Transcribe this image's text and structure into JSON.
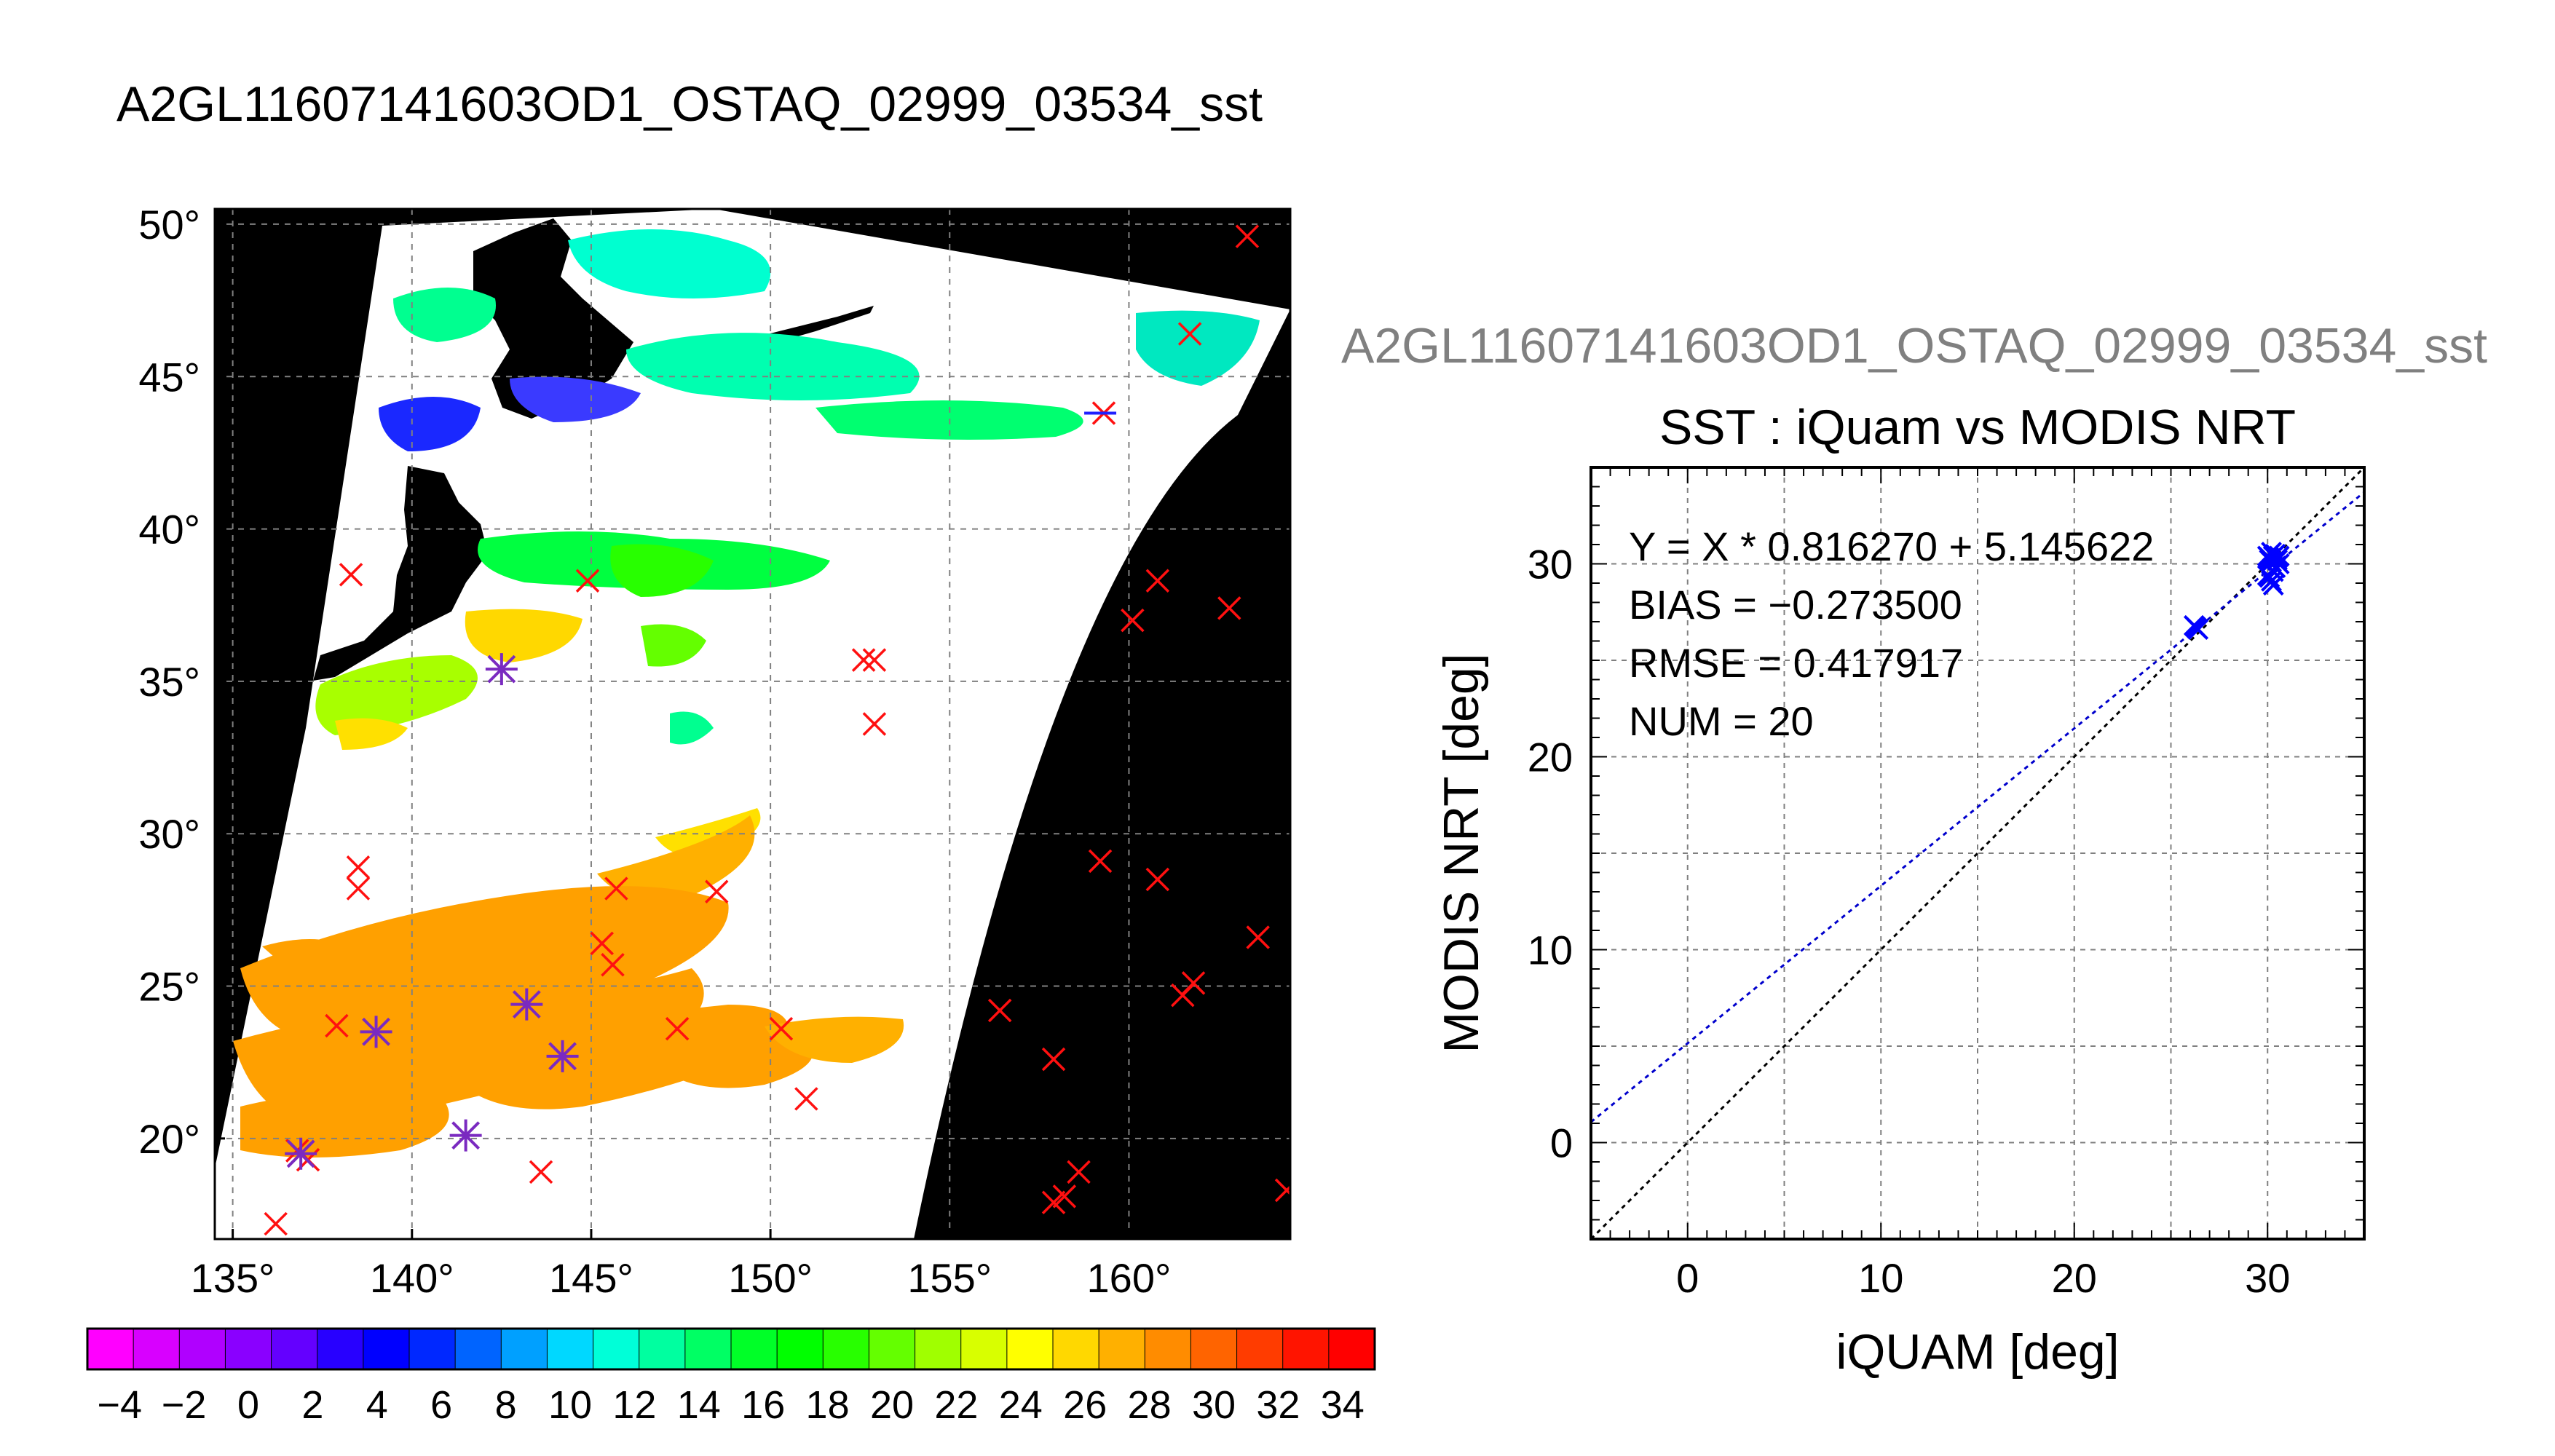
{
  "page": {
    "title": "A2GL11607141603OD1_OSTAQ_02999_03534_sst",
    "overlay_title": "A2GL11607141603OD1_OSTAQ_02999_03534_sst"
  },
  "map": {
    "lon_ticks": [
      135,
      140,
      145,
      150,
      155,
      160
    ],
    "lat_ticks": [
      20,
      25,
      30,
      35,
      40,
      45,
      50
    ],
    "lon_range": [
      134.5,
      164.5
    ],
    "lat_range": [
      16.7,
      50.5
    ],
    "degree_symbol": "°",
    "colorbar": {
      "min": -5,
      "max": 35,
      "tick_labels": [
        "−4",
        "−2",
        "0",
        "2",
        "4",
        "6",
        "8",
        "10",
        "12",
        "14",
        "16",
        "18",
        "20",
        "22",
        "24",
        "26",
        "28",
        "30",
        "32",
        "34"
      ],
      "colors": [
        "#ff00ff",
        "#d800ff",
        "#b000ff",
        "#8a00ff",
        "#6400ff",
        "#2800ff",
        "#0000ff",
        "#0028ff",
        "#0064ff",
        "#00a0ff",
        "#00d8ff",
        "#00ffd8",
        "#00ffa0",
        "#00ff64",
        "#00ff28",
        "#00ff00",
        "#28ff00",
        "#64ff00",
        "#a0ff00",
        "#d8ff00",
        "#ffff00",
        "#ffd800",
        "#ffb000",
        "#ff8c00",
        "#ff6400",
        "#ff3c00",
        "#ff1400",
        "#ff0000"
      ]
    },
    "red_marks": [
      [
        163.3,
        49.6
      ],
      [
        161.7,
        46.4
      ],
      [
        159.3,
        43.8
      ],
      [
        138.3,
        38.5
      ],
      [
        144.9,
        38.3
      ],
      [
        160.8,
        38.3
      ],
      [
        162.8,
        37.4
      ],
      [
        160.1,
        37.0
      ],
      [
        152.6,
        35.7
      ],
      [
        152.9,
        35.7
      ],
      [
        152.9,
        33.6
      ],
      [
        138.5,
        28.9
      ],
      [
        138.5,
        28.2
      ],
      [
        145.7,
        28.2
      ],
      [
        148.5,
        28.1
      ],
      [
        159.2,
        29.1
      ],
      [
        160.8,
        28.5
      ],
      [
        163.6,
        26.6
      ],
      [
        145.3,
        26.4
      ],
      [
        145.6,
        25.7
      ],
      [
        161.5,
        24.7
      ],
      [
        161.8,
        25.1
      ],
      [
        156.4,
        24.2
      ],
      [
        147.4,
        23.6
      ],
      [
        150.3,
        23.6
      ],
      [
        137.9,
        23.7
      ],
      [
        157.9,
        22.6
      ],
      [
        151.0,
        21.3
      ],
      [
        136.8,
        19.6
      ],
      [
        137.1,
        19.3
      ],
      [
        158.6,
        18.9
      ],
      [
        143.6,
        18.9
      ],
      [
        157.9,
        17.9
      ],
      [
        158.2,
        18.1
      ],
      [
        136.2,
        17.2
      ],
      [
        164.4,
        18.3
      ]
    ],
    "purple_marks": [
      [
        142.5,
        35.4
      ],
      [
        136.9,
        19.5
      ],
      [
        139.0,
        23.5
      ],
      [
        143.2,
        24.4
      ],
      [
        144.2,
        22.7
      ],
      [
        141.5,
        20.1
      ]
    ],
    "blue_marks": [
      [
        159.2,
        43.8
      ]
    ]
  },
  "chart_data": {
    "type": "scatter",
    "title": "SST : iQuam vs MODIS NRT",
    "xlabel": "iQUAM [deg]",
    "ylabel": "MODIS NRT [deg]",
    "xlim": [
      -5,
      35
    ],
    "ylim": [
      -5,
      35
    ],
    "x_ticks": [
      0,
      10,
      20,
      30
    ],
    "y_ticks": [
      0,
      10,
      20,
      30
    ],
    "grid": true,
    "annotations": [
      "Y = X * 0.816270 + 5.145622",
      "BIAS = −0.273500",
      "RMSE = 0.417917",
      "NUM = 20"
    ],
    "fit": {
      "slope": 0.81627,
      "intercept": 5.145622,
      "color": "#0000cc"
    },
    "identity_line": {
      "color": "#000000"
    },
    "point_color": "#0000ff",
    "points": [
      [
        26.3,
        26.7
      ],
      [
        26.2,
        26.8
      ],
      [
        26.4,
        26.6
      ],
      [
        30.0,
        30.4
      ],
      [
        30.1,
        30.3
      ],
      [
        30.4,
        30.5
      ],
      [
        30.6,
        30.4
      ],
      [
        30.5,
        30.2
      ],
      [
        30.2,
        30.1
      ],
      [
        30.3,
        29.6
      ],
      [
        30.1,
        29.3
      ],
      [
        30.2,
        29.1
      ],
      [
        30.3,
        28.9
      ],
      [
        30.0,
        29.4
      ],
      [
        30.4,
        29.8
      ],
      [
        30.6,
        30.0
      ],
      [
        30.2,
        30.6
      ],
      [
        30.5,
        30.3
      ],
      [
        30.1,
        30.2
      ],
      [
        30.3,
        30.4
      ]
    ]
  }
}
